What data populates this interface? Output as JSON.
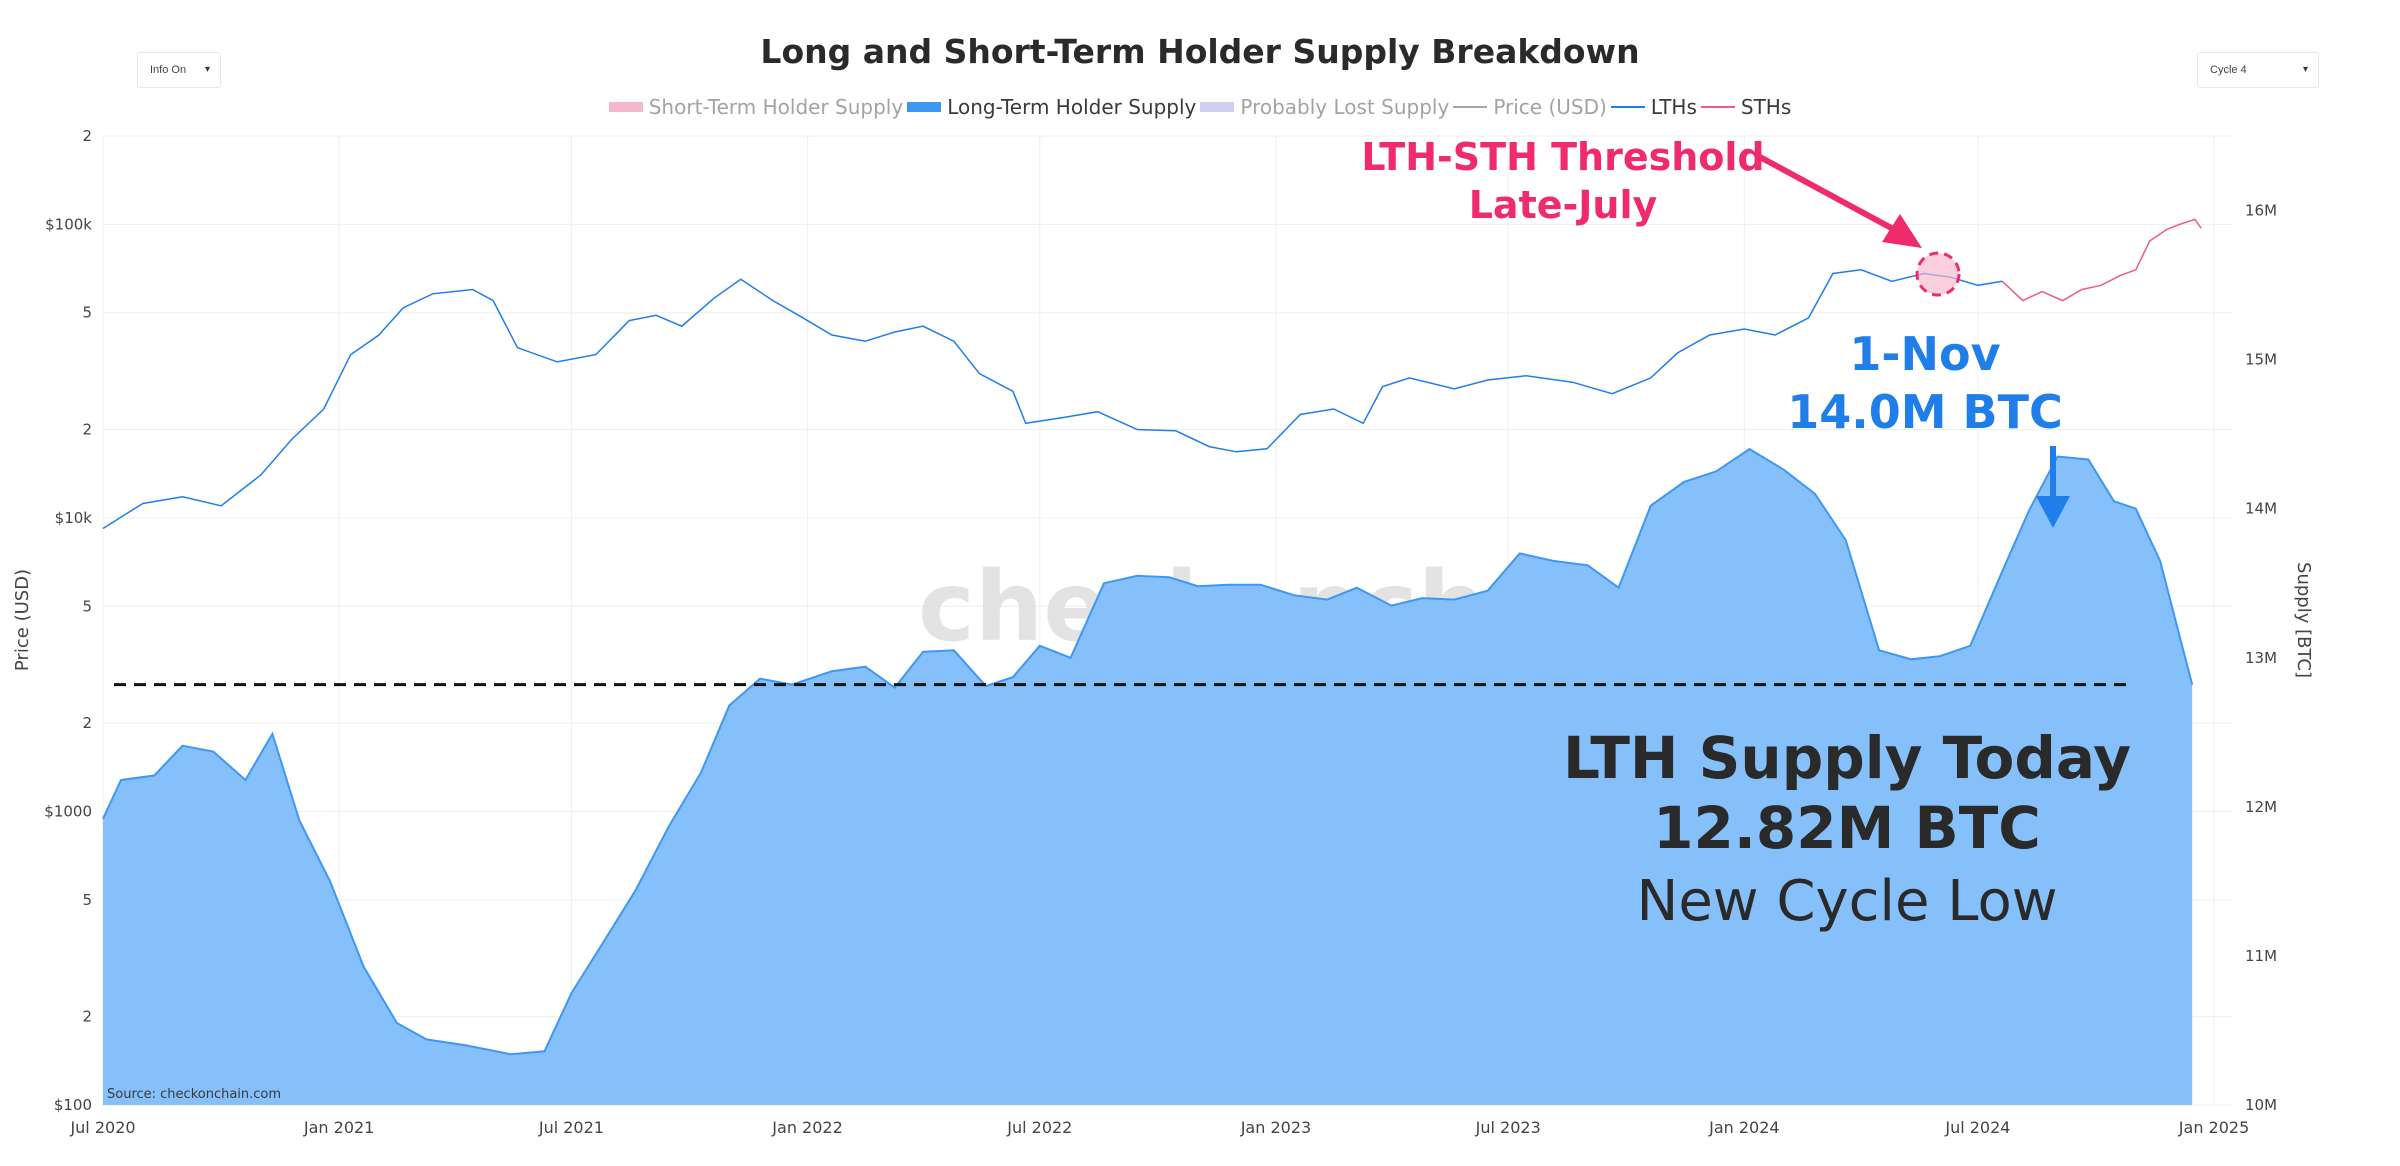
{
  "header": {
    "title": "Long and Short-Term Holder Supply Breakdown",
    "info_toggle": "Info On",
    "cycle_select": "Cycle 4"
  },
  "legend": [
    {
      "label": "Short-Term Holder Supply",
      "color": "#f6b8cc",
      "kind": "area",
      "dim": true
    },
    {
      "label": "Long-Term Holder Supply",
      "color": "#3d97f5",
      "kind": "area",
      "dim": false
    },
    {
      "label": "Probably Lost Supply",
      "color": "#cfcff0",
      "kind": "area",
      "dim": true
    },
    {
      "label": "Price (USD)",
      "color": "#a6a6a6",
      "kind": "line",
      "dim": true
    },
    {
      "label": "LTHs",
      "color": "#1f7ee8",
      "kind": "line",
      "dim": false
    },
    {
      "label": "STHs",
      "color": "#ee5a86",
      "kind": "line",
      "dim": false
    }
  ],
  "chart_data": {
    "type": "area",
    "y_left": {
      "label": "Price (USD)",
      "scale": "log",
      "range": [
        100,
        200000
      ],
      "ticks": [
        {
          "v": 100,
          "t": "$100"
        },
        {
          "v": 200,
          "t": "2"
        },
        {
          "v": 500,
          "t": "5"
        },
        {
          "v": 1000,
          "t": "$1000"
        },
        {
          "v": 2000,
          "t": "2"
        },
        {
          "v": 5000,
          "t": "5"
        },
        {
          "v": 10000,
          "t": "$10k"
        },
        {
          "v": 20000,
          "t": "2"
        },
        {
          "v": 50000,
          "t": "5"
        },
        {
          "v": 100000,
          "t": "$100k"
        },
        {
          "v": 200000,
          "t": "2"
        }
      ]
    },
    "y_right": {
      "label": "Supply [BTC]",
      "range_millions": [
        10,
        16.5
      ],
      "ticks": [
        {
          "v": 10,
          "t": "10M"
        },
        {
          "v": 11,
          "t": "11M"
        },
        {
          "v": 12,
          "t": "12M"
        },
        {
          "v": 13,
          "t": "13M"
        },
        {
          "v": 14,
          "t": "14M"
        },
        {
          "v": 15,
          "t": "15M"
        },
        {
          "v": 16,
          "t": "16M"
        }
      ]
    },
    "x_axis": {
      "range": [
        "2020-07-01",
        "2025-01-15"
      ],
      "ticks": [
        {
          "v": "2020-07-01",
          "t": "Jul 2020"
        },
        {
          "v": "2021-01-01",
          "t": "Jan 2021"
        },
        {
          "v": "2021-07-01",
          "t": "Jul 2021"
        },
        {
          "v": "2022-01-01",
          "t": "Jan 2022"
        },
        {
          "v": "2022-07-01",
          "t": "Jul 2022"
        },
        {
          "v": "2023-01-01",
          "t": "Jan 2023"
        },
        {
          "v": "2023-07-01",
          "t": "Jul 2023"
        },
        {
          "v": "2024-01-01",
          "t": "Jan 2024"
        },
        {
          "v": "2024-07-01",
          "t": "Jul 2024"
        },
        {
          "v": "2025-01-01",
          "t": "Jan 2025"
        }
      ]
    },
    "grid": true,
    "series": [
      {
        "name": "Long-Term Holder Supply",
        "unit": "M BTC",
        "color": "#3d97f5",
        "dates": [
          "2020-07-01",
          "2020-07-15",
          "2020-08-10",
          "2020-09-01",
          "2020-09-25",
          "2020-10-20",
          "2020-11-10",
          "2020-12-01",
          "2020-12-25",
          "2021-01-20",
          "2021-02-15",
          "2021-03-10",
          "2021-04-10",
          "2021-05-15",
          "2021-06-10",
          "2021-07-01",
          "2021-07-25",
          "2021-08-20",
          "2021-09-15",
          "2021-10-10",
          "2021-11-01",
          "2021-11-25",
          "2021-12-20",
          "2022-01-20",
          "2022-02-15",
          "2022-03-10",
          "2022-04-01",
          "2022-04-25",
          "2022-05-20",
          "2022-06-10",
          "2022-07-01",
          "2022-07-25",
          "2022-08-20",
          "2022-09-15",
          "2022-10-10",
          "2022-11-01",
          "2022-11-25",
          "2022-12-20",
          "2023-01-15",
          "2023-02-10",
          "2023-03-05",
          "2023-04-01",
          "2023-04-25",
          "2023-05-20",
          "2023-06-15",
          "2023-07-10",
          "2023-08-05",
          "2023-09-01",
          "2023-09-25",
          "2023-10-20",
          "2023-11-15",
          "2023-12-10",
          "2024-01-05",
          "2024-02-01",
          "2024-02-25",
          "2024-03-20",
          "2024-04-15",
          "2024-05-10",
          "2024-06-01",
          "2024-06-25",
          "2024-07-20",
          "2024-08-10",
          "2024-09-01",
          "2024-09-25",
          "2024-10-15",
          "2024-11-01",
          "2024-11-20",
          "2024-12-05",
          "2024-12-15"
        ],
        "values": [
          11.92,
          12.18,
          12.21,
          12.41,
          12.37,
          12.18,
          12.49,
          11.91,
          11.5,
          10.93,
          10.55,
          10.44,
          10.4,
          10.34,
          10.36,
          10.75,
          11.08,
          11.44,
          11.87,
          12.23,
          12.68,
          12.86,
          12.82,
          12.91,
          12.94,
          12.8,
          13.04,
          13.05,
          12.81,
          12.87,
          13.08,
          13.0,
          13.5,
          13.55,
          13.54,
          13.48,
          13.49,
          13.49,
          13.42,
          13.39,
          13.47,
          13.35,
          13.4,
          13.39,
          13.45,
          13.7,
          13.65,
          13.62,
          13.47,
          14.02,
          14.18,
          14.25,
          14.4,
          14.26,
          14.1,
          13.79,
          13.05,
          12.99,
          13.01,
          13.08,
          13.58,
          13.99,
          14.35,
          14.33,
          14.05,
          14.0,
          13.65,
          13.15,
          12.82
        ]
      },
      {
        "name": "LTHs",
        "unit": "USD",
        "color": "#1f7ee8",
        "dates": [
          "2020-07-01",
          "2020-08-01",
          "2020-09-01",
          "2020-10-01",
          "2020-11-01",
          "2020-11-25",
          "2020-12-20",
          "2021-01-10",
          "2021-02-01",
          "2021-02-20",
          "2021-03-15",
          "2021-04-15",
          "2021-05-01",
          "2021-05-20",
          "2021-06-20",
          "2021-07-20",
          "2021-08-15",
          "2021-09-05",
          "2021-09-25",
          "2021-10-20",
          "2021-11-10",
          "2021-12-05",
          "2021-12-25",
          "2022-01-20",
          "2022-02-15",
          "2022-03-10",
          "2022-04-01",
          "2022-04-25",
          "2022-05-15",
          "2022-06-10",
          "2022-06-20",
          "2022-07-20",
          "2022-08-15",
          "2022-09-15",
          "2022-10-15",
          "2022-11-10",
          "2022-12-01",
          "2022-12-25",
          "2023-01-20",
          "2023-02-15",
          "2023-03-10",
          "2023-03-25",
          "2023-04-15",
          "2023-05-20",
          "2023-06-15",
          "2023-07-15",
          "2023-08-20",
          "2023-09-20",
          "2023-10-20",
          "2023-11-10",
          "2023-12-05",
          "2024-01-01",
          "2024-01-25",
          "2024-02-20",
          "2024-03-10",
          "2024-04-01",
          "2024-04-25",
          "2024-05-20",
          "2024-06-10",
          "2024-07-01",
          "2024-07-20"
        ],
        "values": [
          9200,
          11200,
          11800,
          11000,
          14000,
          18500,
          23500,
          36000,
          42000,
          52000,
          58000,
          60000,
          55000,
          38000,
          34000,
          36000,
          47000,
          49000,
          45000,
          56000,
          65000,
          55000,
          49000,
          42000,
          40000,
          43000,
          45000,
          40000,
          31000,
          27000,
          21000,
          22000,
          23000,
          20000,
          19800,
          17500,
          16800,
          17200,
          22500,
          23500,
          21000,
          28000,
          30000,
          27500,
          29500,
          30500,
          29000,
          26500,
          30000,
          36500,
          42000,
          44000,
          42000,
          48000,
          68000,
          70000,
          64000,
          68000,
          66000,
          62000,
          64000
        ]
      },
      {
        "name": "STHs",
        "unit": "USD",
        "color": "#ee5a86",
        "dates": [
          "2024-07-20",
          "2024-08-05",
          "2024-08-20",
          "2024-09-05",
          "2024-09-20",
          "2024-10-05",
          "2024-10-20",
          "2024-11-01",
          "2024-11-12",
          "2024-11-25",
          "2024-12-05",
          "2024-12-17",
          "2024-12-22"
        ],
        "values": [
          64000,
          55000,
          59000,
          55000,
          60000,
          62000,
          67000,
          70000,
          88000,
          96000,
          100000,
          104000,
          97000
        ]
      }
    ],
    "reference_line": {
      "value_millions": 12.82,
      "style": "dashed"
    },
    "annotations": {
      "threshold": [
        "LTH-STH Threshold",
        "Late-July"
      ],
      "nov": [
        "1-Nov",
        "14.0M BTC"
      ],
      "today": [
        "LTH Supply Today",
        "12.82M BTC",
        "New Cycle Low"
      ]
    },
    "watermark": "checkonchain",
    "source": "Source: checkonchain.com"
  }
}
